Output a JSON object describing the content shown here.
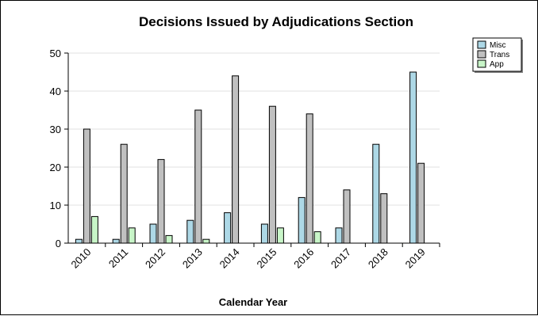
{
  "chart_data": {
    "type": "bar",
    "title": "Decisions Issued by Adjudications Section",
    "xlabel": "Calendar Year",
    "ylabel": "",
    "ylim": [
      0,
      50
    ],
    "yticks": [
      0,
      10,
      20,
      30,
      40,
      50
    ],
    "grid": true,
    "legend_position": "top-right",
    "categories": [
      "2010",
      "2011",
      "2012",
      "2013",
      "2014",
      "2015",
      "2016",
      "2017",
      "2018",
      "2019"
    ],
    "series": [
      {
        "name": "Misc",
        "color": "#add8e6",
        "values": [
          1,
          1,
          5,
          6,
          8,
          5,
          12,
          4,
          26,
          45
        ]
      },
      {
        "name": "Trans",
        "color": "#c0c0c0",
        "values": [
          30,
          26,
          22,
          35,
          44,
          36,
          34,
          14,
          13,
          21
        ]
      },
      {
        "name": "App",
        "color": "#c8f5c8",
        "values": [
          7,
          4,
          2,
          1,
          0,
          4,
          3,
          0,
          0,
          0
        ]
      }
    ]
  }
}
